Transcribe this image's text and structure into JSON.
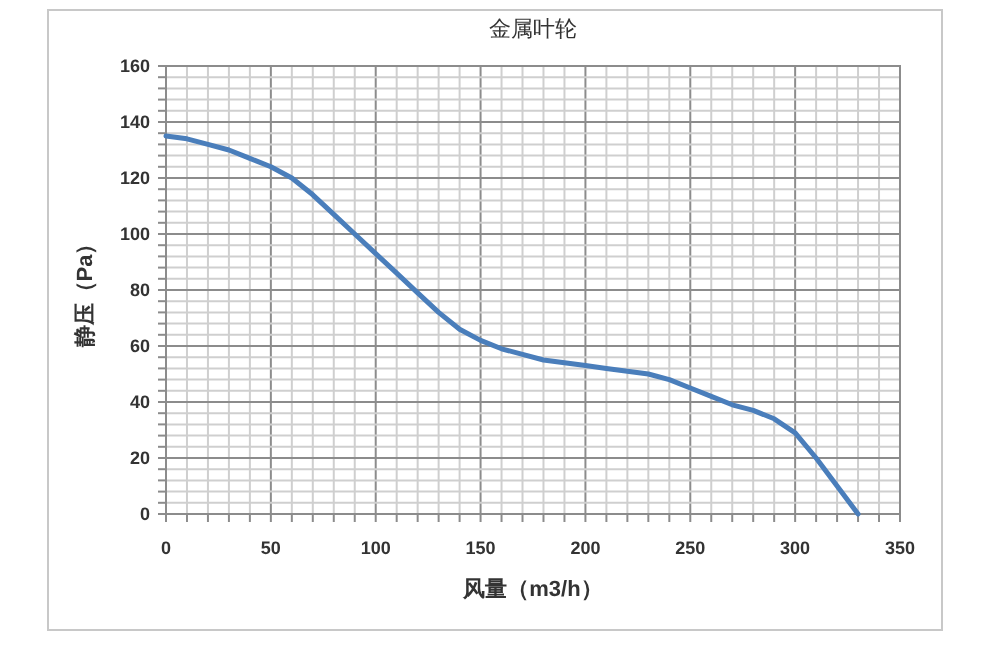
{
  "chart_data": {
    "type": "line",
    "title": "金属叶轮",
    "xlabel": "风量（m3/h）",
    "ylabel": "静压（Pa）",
    "x": [
      0,
      10,
      20,
      30,
      40,
      50,
      60,
      70,
      80,
      90,
      100,
      110,
      120,
      130,
      140,
      150,
      160,
      170,
      180,
      190,
      200,
      210,
      220,
      230,
      240,
      250,
      260,
      270,
      280,
      290,
      300,
      310,
      320,
      330
    ],
    "series": [
      {
        "color": "#4a7ebb",
        "values": [
          135,
          134,
          132,
          130,
          127,
          124,
          120,
          114,
          107,
          100,
          93,
          86,
          79,
          72,
          66,
          62,
          59,
          57,
          55,
          54,
          53,
          52,
          51,
          50,
          48,
          45,
          42,
          39,
          37,
          34,
          29,
          20,
          10,
          0
        ]
      }
    ],
    "xlim": [
      0,
      350
    ],
    "ylim": [
      0,
      160
    ],
    "xticks": [
      0,
      {
        "value": 10,
        "label": null
      },
      {
        "value": 20,
        "label": null
      },
      {
        "value": 30,
        "label": null
      },
      {
        "value": 40,
        "label": null
      },
      50,
      {
        "value": 60,
        "label": null
      },
      {
        "value": 70,
        "label": null
      },
      {
        "value": 80,
        "label": null
      },
      {
        "value": 90,
        "label": null
      },
      100,
      {
        "value": 110,
        "label": null
      },
      {
        "value": 120,
        "label": null
      },
      {
        "value": 130,
        "label": null
      },
      {
        "value": 140,
        "label": null
      },
      150,
      {
        "value": 160,
        "label": null
      },
      {
        "value": 170,
        "label": null
      },
      {
        "value": 180,
        "label": null
      },
      {
        "value": 190,
        "label": null
      },
      200,
      {
        "value": 210,
        "label": null
      },
      {
        "value": 220,
        "label": null
      },
      {
        "value": 230,
        "label": null
      },
      {
        "value": 240,
        "label": null
      },
      250,
      {
        "value": 260,
        "label": null
      },
      {
        "value": 270,
        "label": null
      },
      {
        "value": 280,
        "label": null
      },
      {
        "value": 290,
        "label": null
      },
      300,
      {
        "value": 310,
        "label": null
      },
      {
        "value": 320,
        "label": null
      },
      {
        "value": 330,
        "label": null
      },
      {
        "value": 340,
        "label": null
      },
      350
    ],
    "yticks": [
      0,
      {
        "value": 4,
        "label": null
      },
      {
        "value": 8,
        "label": null
      },
      {
        "value": 12,
        "label": null
      },
      {
        "value": 16,
        "label": null
      },
      20,
      {
        "value": 24,
        "label": null
      },
      {
        "value": 28,
        "label": null
      },
      {
        "value": 32,
        "label": null
      },
      {
        "value": 36,
        "label": null
      },
      40,
      {
        "value": 44,
        "label": null
      },
      {
        "value": 48,
        "label": null
      },
      {
        "value": 52,
        "label": null
      },
      {
        "value": 56,
        "label": null
      },
      60,
      {
        "value": 64,
        "label": null
      },
      {
        "value": 68,
        "label": null
      },
      {
        "value": 72,
        "label": null
      },
      {
        "value": 76,
        "label": null
      },
      80,
      {
        "value": 84,
        "label": null
      },
      {
        "value": 88,
        "label": null
      },
      {
        "value": 92,
        "label": null
      },
      {
        "value": 96,
        "label": null
      },
      100,
      {
        "value": 104,
        "label": null
      },
      {
        "value": 108,
        "label": null
      },
      {
        "value": 112,
        "label": null
      },
      {
        "value": 116,
        "label": null
      },
      120,
      {
        "value": 124,
        "label": null
      },
      {
        "value": 128,
        "label": null
      },
      {
        "value": 132,
        "label": null
      },
      {
        "value": 136,
        "label": null
      },
      140,
      {
        "value": 144,
        "label": null
      },
      {
        "value": 148,
        "label": null
      },
      {
        "value": 152,
        "label": null
      },
      {
        "value": 156,
        "label": null
      },
      160
    ],
    "grid": true,
    "marker": "none",
    "line_style": "solid"
  }
}
